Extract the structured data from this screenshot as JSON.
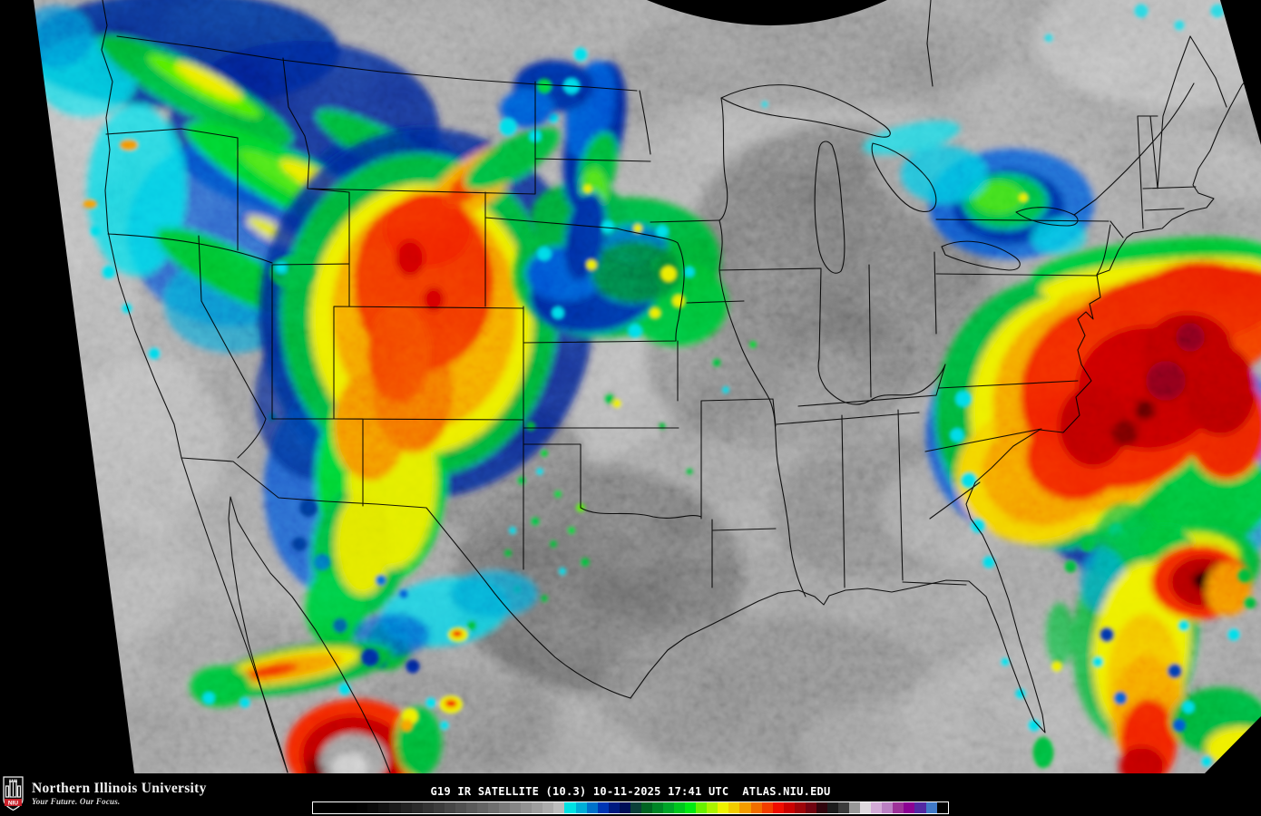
{
  "branding": {
    "acronym": "NIU",
    "university": "Northern Illinois University",
    "tagline": "Your Future. Our Focus.",
    "brand_red": "#c8202a"
  },
  "caption": {
    "text": "G19 IR SATELLITE (10.3) 10-11-2025 17:41 UTC  ATLAS.NIU.EDU",
    "satellite": "G19 IR SATELLITE",
    "channel": "(10.3)",
    "date": "10-11-2025",
    "time": "17:41 UTC",
    "site": "ATLAS.NIU.EDU"
  },
  "colorbar": {
    "border_color": "#ffffff",
    "segments": [
      "#000000",
      "#000000",
      "#000000",
      "#000000",
      "#030303",
      "#0a0a0a",
      "#121212",
      "#1a1a1a",
      "#222222",
      "#2a2a2a",
      "#333333",
      "#3c3c3c",
      "#464646",
      "#505050",
      "#5a5a5a",
      "#646464",
      "#6f6f6f",
      "#7a7a7a",
      "#868686",
      "#929292",
      "#9e9e9e",
      "#ababab",
      "#bcbcbc",
      "#00e2e2",
      "#00aed6",
      "#0072ca",
      "#0036b4",
      "#001a80",
      "#000e56",
      "#0a3f38",
      "#006422",
      "#008526",
      "#00a528",
      "#00c61e",
      "#00e912",
      "#68f000",
      "#abf300",
      "#eef200",
      "#f2cc00",
      "#f49c00",
      "#f16e00",
      "#f23e00",
      "#ef0d00",
      "#ca0000",
      "#9d0408",
      "#700310",
      "#30050d",
      "#1c1c1c",
      "#3b3b3b",
      "#999999",
      "#ded9de",
      "#d3abd7",
      "#bb80c3",
      "#9d3399",
      "#8c0293",
      "#5329a3",
      "#4079c7",
      "#000000"
    ]
  }
}
